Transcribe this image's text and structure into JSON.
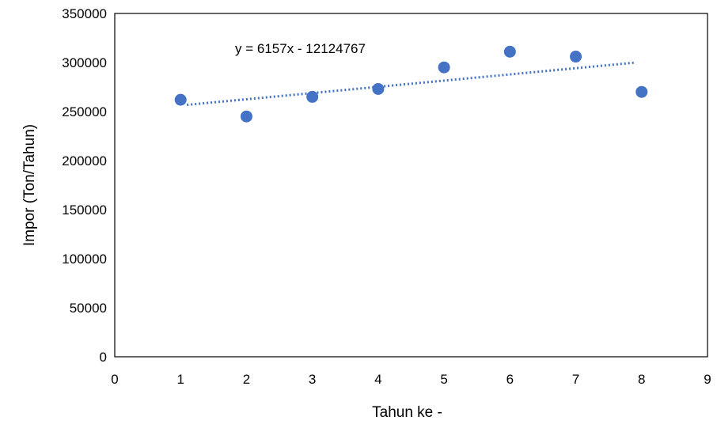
{
  "chart_data": {
    "type": "scatter",
    "title": "",
    "xlabel": "Tahun ke -",
    "ylabel": "Impor (Ton/Tahun)",
    "xlim": [
      0,
      9
    ],
    "ylim": [
      0,
      350000
    ],
    "x_ticks": [
      "0",
      "1",
      "2",
      "3",
      "4",
      "5",
      "6",
      "7",
      "8",
      "9"
    ],
    "y_ticks": [
      "0",
      "50000",
      "100000",
      "150000",
      "200000",
      "250000",
      "300000",
      "350000"
    ],
    "grid": false,
    "legend": "none",
    "series": [
      {
        "x": [
          1,
          2,
          3,
          4,
          5,
          6,
          7,
          8
        ],
        "y": [
          262000,
          245000,
          265000,
          273000,
          295000,
          311000,
          306000,
          270000
        ],
        "color": "#4472c4",
        "marker": "circle"
      }
    ],
    "trendline": {
      "type": "linear",
      "equation": "y = 6157x - 12124767",
      "x_range": [
        1,
        8
      ],
      "y_start": 256800,
      "y_end": 299900,
      "style": "dotted",
      "color": "#4472c4"
    }
  }
}
